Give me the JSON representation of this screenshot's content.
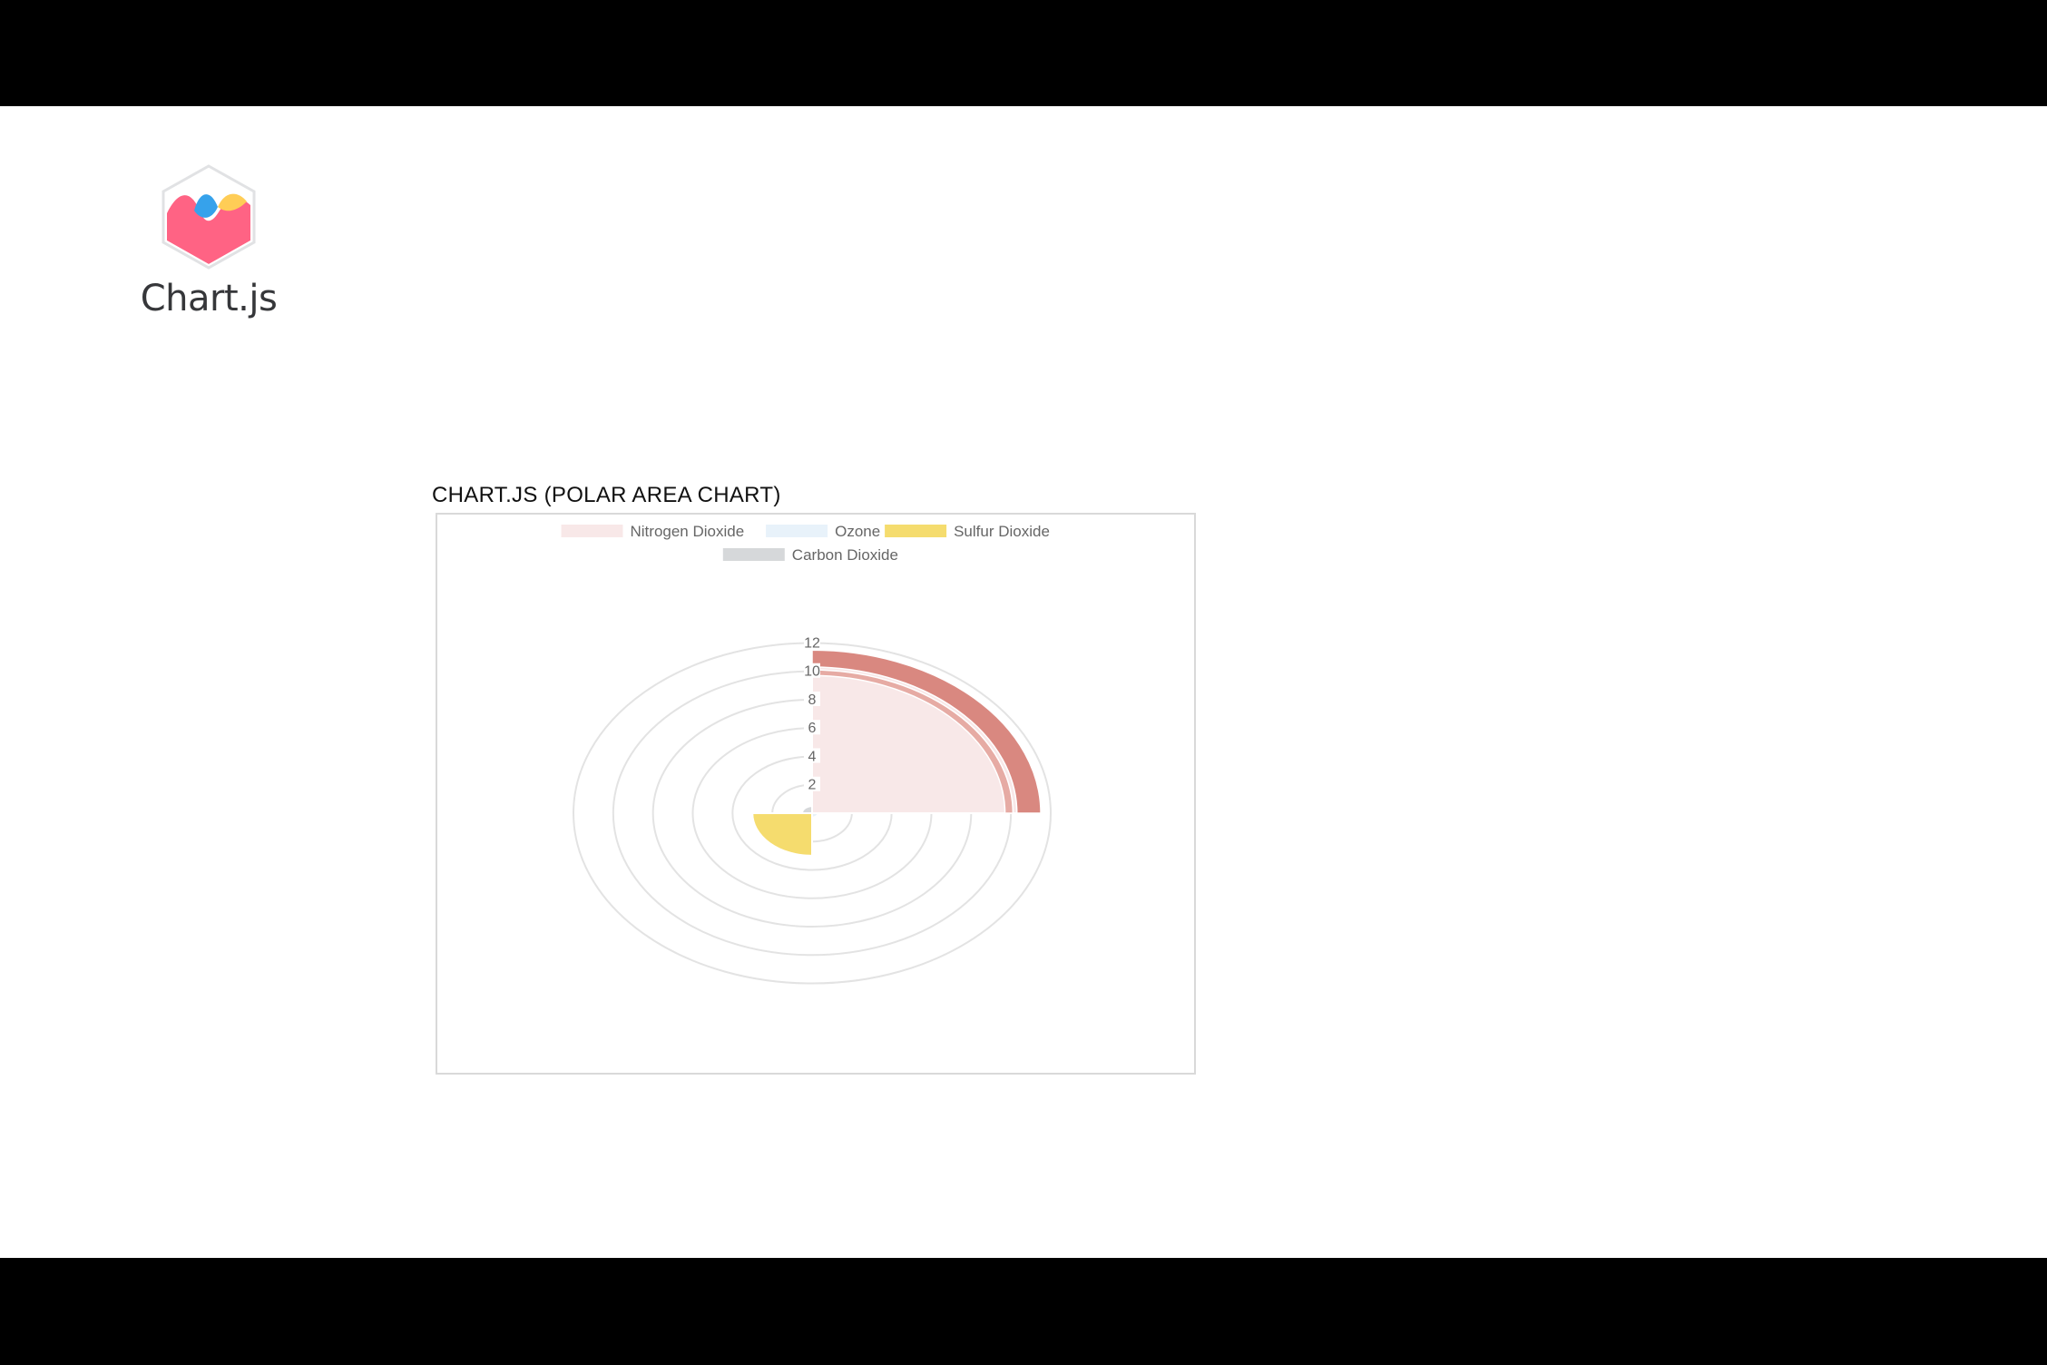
{
  "brand": {
    "name": "Chart.js",
    "logo_icon": "chartjs-logo-icon"
  },
  "chart_title": "CHART.JS (POLAR AREA CHART)",
  "chart_data": {
    "type": "polar-area",
    "title": "CHART.JS (POLAR AREA CHART)",
    "legend_position": "top",
    "categories": [
      "Nitrogen Dioxide",
      "Ozone",
      "Sulfur Dioxide",
      "Carbon Dioxide"
    ],
    "values": [
      11.5,
      0.3,
      3,
      0.5
    ],
    "colors": [
      "#f8e8e8",
      "#e8f2fa",
      "#f5dc6e",
      "#d6d8da"
    ],
    "highlight_rings": [
      {
        "from": 9.7,
        "to": 10.1,
        "color": "#e6aba4"
      },
      {
        "from": 10.3,
        "to": 11.5,
        "color": "#d98880"
      }
    ],
    "r_axis": {
      "min": 0,
      "max": 12,
      "step": 2,
      "ticks": [
        "2",
        "4",
        "6",
        "8",
        "10",
        "12"
      ]
    },
    "grid": true
  }
}
